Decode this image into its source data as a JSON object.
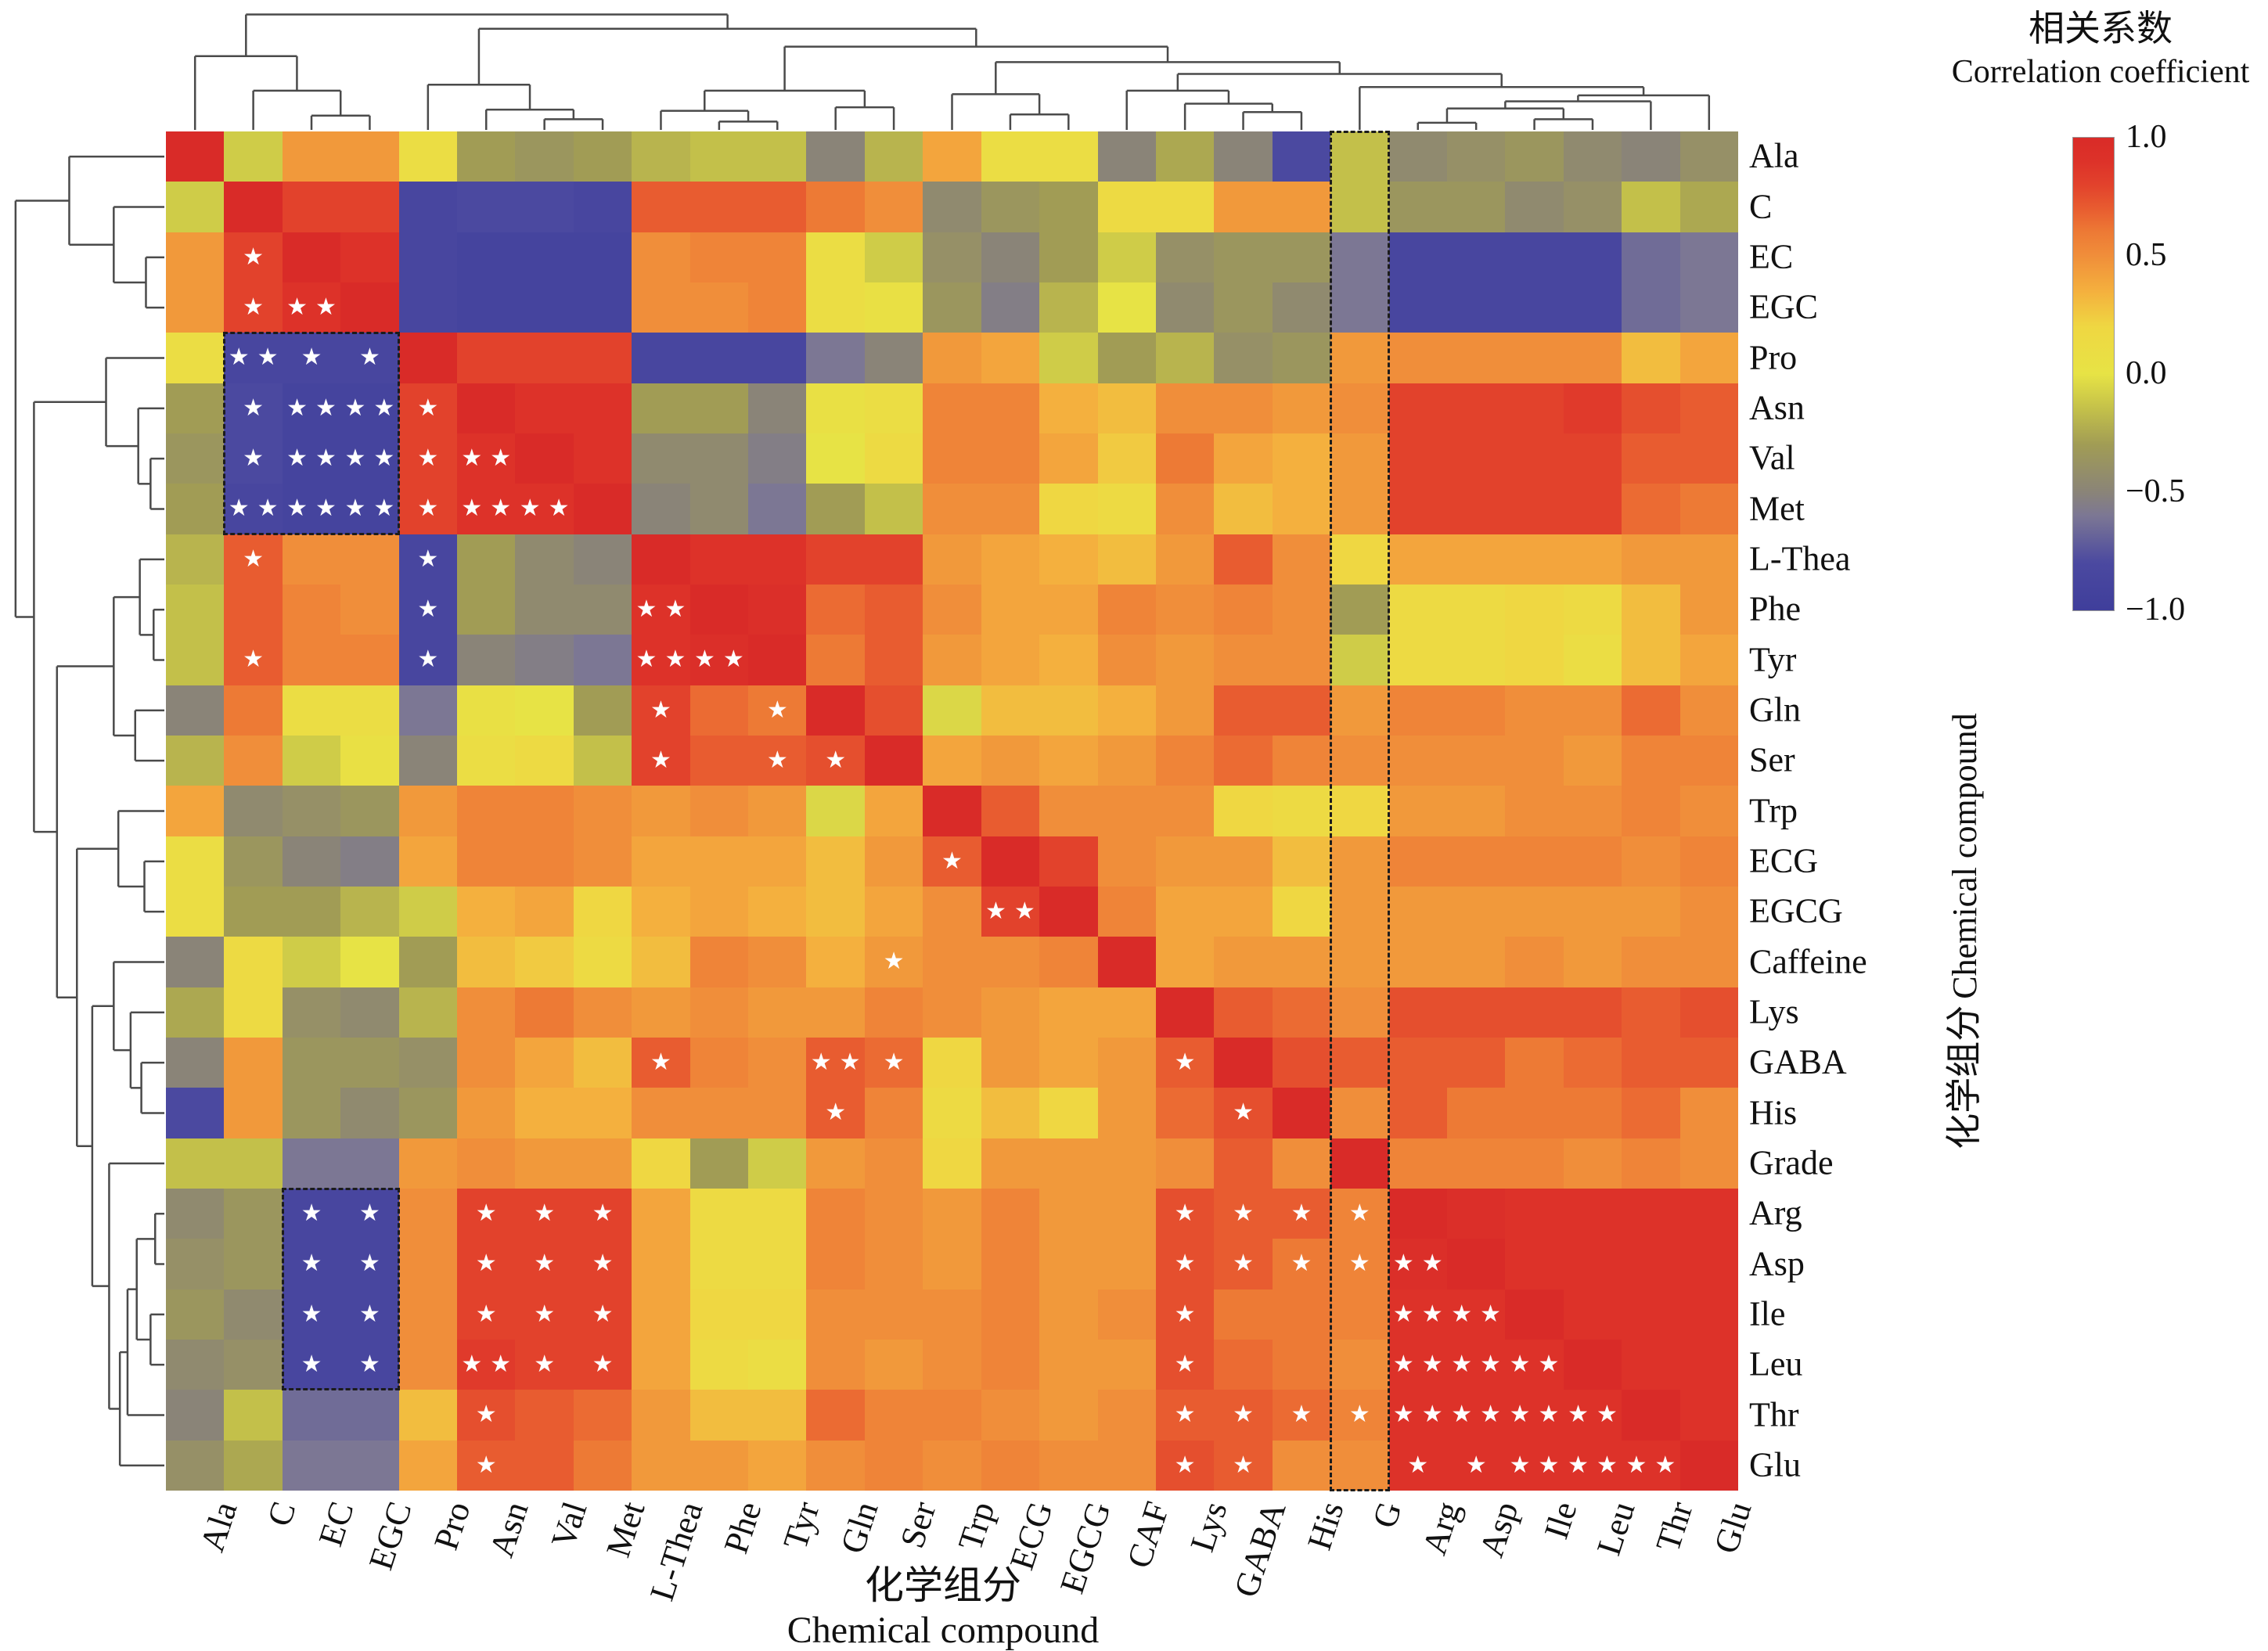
{
  "figure": {
    "legend": {
      "title_zh": "相关系数",
      "title_en": "Correlation coefficient",
      "ticks": [
        "1.0",
        "0.5",
        "0.0",
        "−0.5",
        "−1.0"
      ]
    },
    "x_axis": {
      "title_zh": "化学组分",
      "title_en": "Chemical compound"
    },
    "y_axis": {
      "title_zh": "化学组分",
      "title_en": "Chemical compound"
    }
  },
  "chart_data": {
    "type": "heatmap",
    "subtype": "clustered-correlation-matrix",
    "symmetric": true,
    "value_range": [
      -1,
      1
    ],
    "row_labels": [
      "Ala",
      "C",
      "EC",
      "EGC",
      "Pro",
      "Asn",
      "Val",
      "Met",
      "L-Thea",
      "Phe",
      "Tyr",
      "Gln",
      "Ser",
      "Trp",
      "ECG",
      "EGCG",
      "Caffeine",
      "Lys",
      "GABA",
      "His",
      "Grade",
      "Arg",
      "Asp",
      "Ile",
      "Leu",
      "Thr",
      "Glu"
    ],
    "col_labels": [
      "Ala",
      "C",
      "EC",
      "EGC",
      "Pro",
      "Asn",
      "Val",
      "Met",
      "L-Thea",
      "Phe",
      "Tyr",
      "Gln",
      "Ser",
      "Trp",
      "ECG",
      "EGCG",
      "CAF",
      "Lys",
      "GABA",
      "His",
      "G",
      "Arg",
      "Asp",
      "Ile",
      "Leu",
      "Thr",
      "Glu"
    ],
    "matrix_lower": [
      [
        1
      ],
      [
        -0.1,
        1
      ],
      [
        0.45,
        0.8,
        1
      ],
      [
        0.45,
        0.8,
        0.9,
        1
      ],
      [
        0.1,
        -0.85,
        -0.85,
        -0.85,
        1
      ],
      [
        -0.3,
        -0.8,
        -0.9,
        -0.9,
        0.8,
        1
      ],
      [
        -0.35,
        -0.8,
        -0.9,
        -0.9,
        0.8,
        0.9,
        1
      ],
      [
        -0.3,
        -0.85,
        -0.9,
        -0.9,
        0.8,
        0.9,
        0.9,
        1
      ],
      [
        -0.2,
        0.7,
        0.5,
        0.5,
        -0.85,
        -0.3,
        -0.45,
        -0.5,
        1
      ],
      [
        -0.15,
        0.7,
        0.55,
        0.5,
        -0.85,
        -0.3,
        -0.45,
        -0.45,
        0.9,
        1
      ],
      [
        -0.15,
        0.7,
        0.55,
        0.55,
        -0.85,
        -0.5,
        -0.55,
        -0.6,
        0.9,
        0.95,
        1
      ],
      [
        -0.5,
        0.6,
        0.1,
        0.1,
        -0.6,
        0.05,
        0,
        -0.3,
        0.8,
        0.65,
        0.6,
        1
      ],
      [
        -0.2,
        0.5,
        -0.1,
        0.05,
        -0.5,
        0.1,
        0.15,
        -0.15,
        0.8,
        0.7,
        0.7,
        0.75,
        1
      ],
      [
        0.4,
        -0.45,
        -0.4,
        -0.35,
        0.45,
        0.55,
        0.55,
        0.5,
        0.45,
        0.5,
        0.45,
        -0.05,
        0.4,
        1
      ],
      [
        0.1,
        -0.35,
        -0.5,
        -0.55,
        0.4,
        0.55,
        0.55,
        0.5,
        0.4,
        0.4,
        0.4,
        0.3,
        0.45,
        0.7,
        1
      ],
      [
        0.1,
        -0.3,
        -0.3,
        -0.2,
        -0.1,
        0.35,
        0.4,
        0.2,
        0.35,
        0.4,
        0.35,
        0.3,
        0.4,
        0.5,
        0.8,
        1
      ],
      [
        -0.5,
        0.15,
        -0.1,
        0,
        -0.3,
        0.3,
        0.25,
        0.15,
        0.3,
        0.55,
        0.5,
        0.35,
        0.45,
        0.5,
        0.5,
        0.55,
        1
      ],
      [
        -0.25,
        0.15,
        -0.4,
        -0.45,
        -0.2,
        0.5,
        0.6,
        0.5,
        0.45,
        0.5,
        0.45,
        0.45,
        0.55,
        0.5,
        0.45,
        0.4,
        0.4,
        1
      ],
      [
        -0.5,
        0.45,
        -0.35,
        -0.35,
        -0.4,
        0.5,
        0.4,
        0.3,
        0.7,
        0.55,
        0.5,
        0.7,
        0.65,
        0.2,
        0.45,
        0.4,
        0.45,
        0.7,
        1
      ],
      [
        -0.8,
        0.45,
        -0.35,
        -0.45,
        -0.35,
        0.45,
        0.35,
        0.35,
        0.5,
        0.5,
        0.5,
        0.7,
        0.55,
        0.15,
        0.3,
        0.2,
        0.45,
        0.65,
        0.75,
        1
      ],
      [
        -0.15,
        -0.15,
        -0.6,
        -0.6,
        0.45,
        0.5,
        0.45,
        0.45,
        0.2,
        -0.3,
        -0.1,
        0.45,
        0.5,
        0.2,
        0.45,
        0.45,
        0.45,
        0.5,
        0.7,
        0.5,
        1
      ],
      [
        -0.45,
        -0.35,
        -0.85,
        -0.85,
        0.5,
        0.8,
        0.8,
        0.8,
        0.4,
        0.15,
        0.15,
        0.55,
        0.5,
        0.45,
        0.55,
        0.45,
        0.45,
        0.75,
        0.7,
        0.7,
        0.55,
        1
      ],
      [
        -0.4,
        -0.35,
        -0.85,
        -0.85,
        0.5,
        0.8,
        0.8,
        0.8,
        0.4,
        0.15,
        0.15,
        0.55,
        0.5,
        0.45,
        0.55,
        0.45,
        0.45,
        0.75,
        0.7,
        0.6,
        0.55,
        0.95,
        1
      ],
      [
        -0.35,
        -0.45,
        -0.85,
        -0.85,
        0.5,
        0.8,
        0.8,
        0.8,
        0.4,
        0.2,
        0.2,
        0.5,
        0.5,
        0.5,
        0.55,
        0.45,
        0.5,
        0.75,
        0.6,
        0.6,
        0.55,
        0.9,
        0.9,
        1
      ],
      [
        -0.45,
        -0.4,
        -0.85,
        -0.85,
        0.5,
        0.85,
        0.8,
        0.8,
        0.4,
        0.15,
        0.1,
        0.5,
        0.45,
        0.5,
        0.55,
        0.45,
        0.45,
        0.75,
        0.65,
        0.6,
        0.5,
        0.9,
        0.9,
        0.9,
        1
      ],
      [
        -0.5,
        -0.15,
        -0.65,
        -0.65,
        0.3,
        0.75,
        0.7,
        0.65,
        0.45,
        0.3,
        0.3,
        0.65,
        0.55,
        0.55,
        0.5,
        0.45,
        0.5,
        0.7,
        0.7,
        0.65,
        0.55,
        0.9,
        0.9,
        0.9,
        0.9,
        1
      ],
      [
        -0.4,
        -0.25,
        -0.6,
        -0.6,
        0.4,
        0.7,
        0.7,
        0.6,
        0.45,
        0.45,
        0.4,
        0.5,
        0.55,
        0.5,
        0.55,
        0.5,
        0.5,
        0.75,
        0.7,
        0.5,
        0.5,
        0.9,
        0.9,
        0.9,
        0.9,
        0.9,
        1
      ]
    ],
    "significance_lower": [
      [
        2,
        1,
        "*"
      ],
      [
        3,
        1,
        "*"
      ],
      [
        3,
        2,
        "**"
      ],
      [
        4,
        1,
        "**"
      ],
      [
        4,
        2,
        "*"
      ],
      [
        4,
        3,
        "*"
      ],
      [
        5,
        1,
        "*"
      ],
      [
        5,
        2,
        "**"
      ],
      [
        5,
        3,
        "**"
      ],
      [
        5,
        4,
        "*"
      ],
      [
        6,
        1,
        "*"
      ],
      [
        6,
        2,
        "**"
      ],
      [
        6,
        3,
        "**"
      ],
      [
        6,
        4,
        "*"
      ],
      [
        6,
        5,
        "**"
      ],
      [
        7,
        1,
        "**"
      ],
      [
        7,
        2,
        "**"
      ],
      [
        7,
        3,
        "**"
      ],
      [
        7,
        4,
        "*"
      ],
      [
        7,
        5,
        "**"
      ],
      [
        7,
        6,
        "**"
      ],
      [
        8,
        1,
        "*"
      ],
      [
        8,
        4,
        "*"
      ],
      [
        9,
        4,
        "*"
      ],
      [
        9,
        8,
        "**"
      ],
      [
        10,
        1,
        "*"
      ],
      [
        10,
        4,
        "*"
      ],
      [
        10,
        8,
        "**"
      ],
      [
        10,
        9,
        "**"
      ],
      [
        11,
        8,
        "*"
      ],
      [
        11,
        10,
        "*"
      ],
      [
        12,
        8,
        "*"
      ],
      [
        12,
        10,
        "*"
      ],
      [
        12,
        11,
        "*"
      ],
      [
        14,
        13,
        "*"
      ],
      [
        15,
        14,
        "**"
      ],
      [
        16,
        12,
        "*"
      ],
      [
        18,
        8,
        "*"
      ],
      [
        18,
        11,
        "**"
      ],
      [
        18,
        12,
        "*"
      ],
      [
        18,
        17,
        "*"
      ],
      [
        19,
        11,
        "*"
      ],
      [
        19,
        18,
        "*"
      ],
      [
        21,
        2,
        "*"
      ],
      [
        21,
        3,
        "*"
      ],
      [
        21,
        5,
        "*"
      ],
      [
        21,
        6,
        "*"
      ],
      [
        21,
        7,
        "*"
      ],
      [
        21,
        17,
        "*"
      ],
      [
        21,
        18,
        "*"
      ],
      [
        21,
        19,
        "*"
      ],
      [
        21,
        20,
        "*"
      ],
      [
        22,
        2,
        "*"
      ],
      [
        22,
        3,
        "*"
      ],
      [
        22,
        5,
        "*"
      ],
      [
        22,
        6,
        "*"
      ],
      [
        22,
        7,
        "*"
      ],
      [
        22,
        17,
        "*"
      ],
      [
        22,
        18,
        "*"
      ],
      [
        22,
        19,
        "*"
      ],
      [
        22,
        20,
        "*"
      ],
      [
        22,
        21,
        "**"
      ],
      [
        23,
        2,
        "*"
      ],
      [
        23,
        3,
        "*"
      ],
      [
        23,
        5,
        "*"
      ],
      [
        23,
        6,
        "*"
      ],
      [
        23,
        7,
        "*"
      ],
      [
        23,
        17,
        "*"
      ],
      [
        23,
        21,
        "**"
      ],
      [
        23,
        22,
        "**"
      ],
      [
        24,
        2,
        "*"
      ],
      [
        24,
        3,
        "*"
      ],
      [
        24,
        5,
        "**"
      ],
      [
        24,
        6,
        "*"
      ],
      [
        24,
        7,
        "*"
      ],
      [
        24,
        17,
        "*"
      ],
      [
        24,
        21,
        "**"
      ],
      [
        24,
        22,
        "**"
      ],
      [
        24,
        23,
        "**"
      ],
      [
        25,
        5,
        "*"
      ],
      [
        25,
        17,
        "*"
      ],
      [
        25,
        18,
        "*"
      ],
      [
        25,
        19,
        "*"
      ],
      [
        25,
        20,
        "*"
      ],
      [
        25,
        21,
        "**"
      ],
      [
        25,
        22,
        "**"
      ],
      [
        25,
        23,
        "**"
      ],
      [
        25,
        24,
        "**"
      ],
      [
        26,
        5,
        "*"
      ],
      [
        26,
        17,
        "*"
      ],
      [
        26,
        18,
        "*"
      ],
      [
        26,
        21,
        "*"
      ],
      [
        26,
        22,
        "*"
      ],
      [
        26,
        23,
        "**"
      ],
      [
        26,
        24,
        "**"
      ],
      [
        26,
        25,
        "**"
      ]
    ],
    "dashed_boxes": [
      {
        "row_start": 4,
        "row_end": 7,
        "col_start": 1,
        "col_end": 3
      },
      {
        "row_start": 21,
        "row_end": 24,
        "col_start": 2,
        "col_end": 3
      },
      {
        "row_start": 0,
        "row_end": 26,
        "col_start": 20,
        "col_end": 20
      }
    ],
    "colormap_stops": [
      [
        -1.0,
        "#3f3e9b"
      ],
      [
        -0.8,
        "#4b49a0"
      ],
      [
        -0.6,
        "#7c7794"
      ],
      [
        -0.5,
        "#8a8478"
      ],
      [
        -0.3,
        "#a19c55"
      ],
      [
        -0.15,
        "#c3c04a"
      ],
      [
        0.0,
        "#e7e345"
      ],
      [
        0.2,
        "#efd742"
      ],
      [
        0.35,
        "#f4b03e"
      ],
      [
        0.5,
        "#f08e3a"
      ],
      [
        0.6,
        "#ed7a35"
      ],
      [
        0.7,
        "#e85c30"
      ],
      [
        0.8,
        "#e2422c"
      ],
      [
        0.9,
        "#dd3229"
      ],
      [
        1.0,
        "#d92b28"
      ]
    ],
    "dendrogram": [
      [
        0,
        [
          1,
          [
            2,
            3,
            0.12
          ],
          0.33
        ],
        0.62
      ],
      [
        [
          4,
          [
            5,
            [
              6,
              7,
              0.09
            ],
            0.17
          ],
          0.38
        ],
        [
          [
            [
              8,
              [
                9,
                10,
                0.07
              ],
              0.16
            ],
            [
              11,
              12,
              0.19
            ],
            0.33
          ],
          [
            [
              13,
              [
                14,
                15,
                0.13
              ],
              0.3
            ],
            [
              [
                16,
                [
                  17,
                  [
                    18,
                    19,
                    0.15
                  ],
                  0.22
                ],
                0.33
              ],
              [
                20,
                [
                  [
                    [
                      [
                        21,
                        22,
                        0.06
                      ],
                      [
                        23,
                        24,
                        0.09
                      ],
                      0.18
                    ],
                    25,
                    0.24
                  ],
                  26,
                  0.29
                ],
                0.36
              ],
              0.47
            ],
            0.57
          ],
          0.7
        ],
        0.85
      ],
      0.97
    ]
  }
}
